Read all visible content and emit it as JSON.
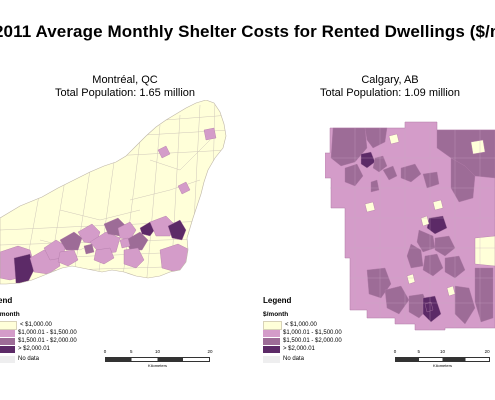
{
  "title": "2011 Average Monthly Shelter Costs for Rented Dwellings ($/m",
  "colors": {
    "lt1000": "#ffffd9",
    "c1000_1500": "#d49cc9",
    "c1500_2000": "#9d6c97",
    "gt2000": "#5c2a67",
    "nodata": "#eeeeef",
    "boundary": "#c8c2b8"
  },
  "maps": [
    {
      "city": "Montréal, QC",
      "population": "Total Population: 1.65 million",
      "legend": {
        "title": "end",
        "unit": "/month",
        "items": [
          {
            "label": "< $1,000.00",
            "color_key": "lt1000"
          },
          {
            "label": "$1,000.01 - $1,500.00",
            "color_key": "c1000_1500"
          },
          {
            "label": "$1,500.01 - $2,000.00",
            "color_key": "c1500_2000"
          },
          {
            "label": "> $2,000.01",
            "color_key": "gt2000"
          },
          {
            "label": "No data",
            "color_key": "nodata"
          }
        ]
      },
      "scale": {
        "ticks": [
          "0",
          "5",
          "10",
          "20"
        ],
        "unit": "Kilometers"
      }
    },
    {
      "city": "Calgary, AB",
      "population": "Total Population: 1.09 million",
      "legend": {
        "title": "Legend",
        "unit": "$/month",
        "items": [
          {
            "label": "< $1,000.00",
            "color_key": "lt1000"
          },
          {
            "label": "$1,000.01 - $1,500.00",
            "color_key": "c1000_1500"
          },
          {
            "label": "$1,500.01 - $2,000.00",
            "color_key": "c1500_2000"
          },
          {
            "label": "> $2,000.01",
            "color_key": "gt2000"
          },
          {
            "label": "No data",
            "color_key": "nodata"
          }
        ]
      },
      "scale": {
        "ticks": [
          "0",
          "5",
          "10",
          "20"
        ],
        "unit": "Kilometers"
      }
    }
  ]
}
